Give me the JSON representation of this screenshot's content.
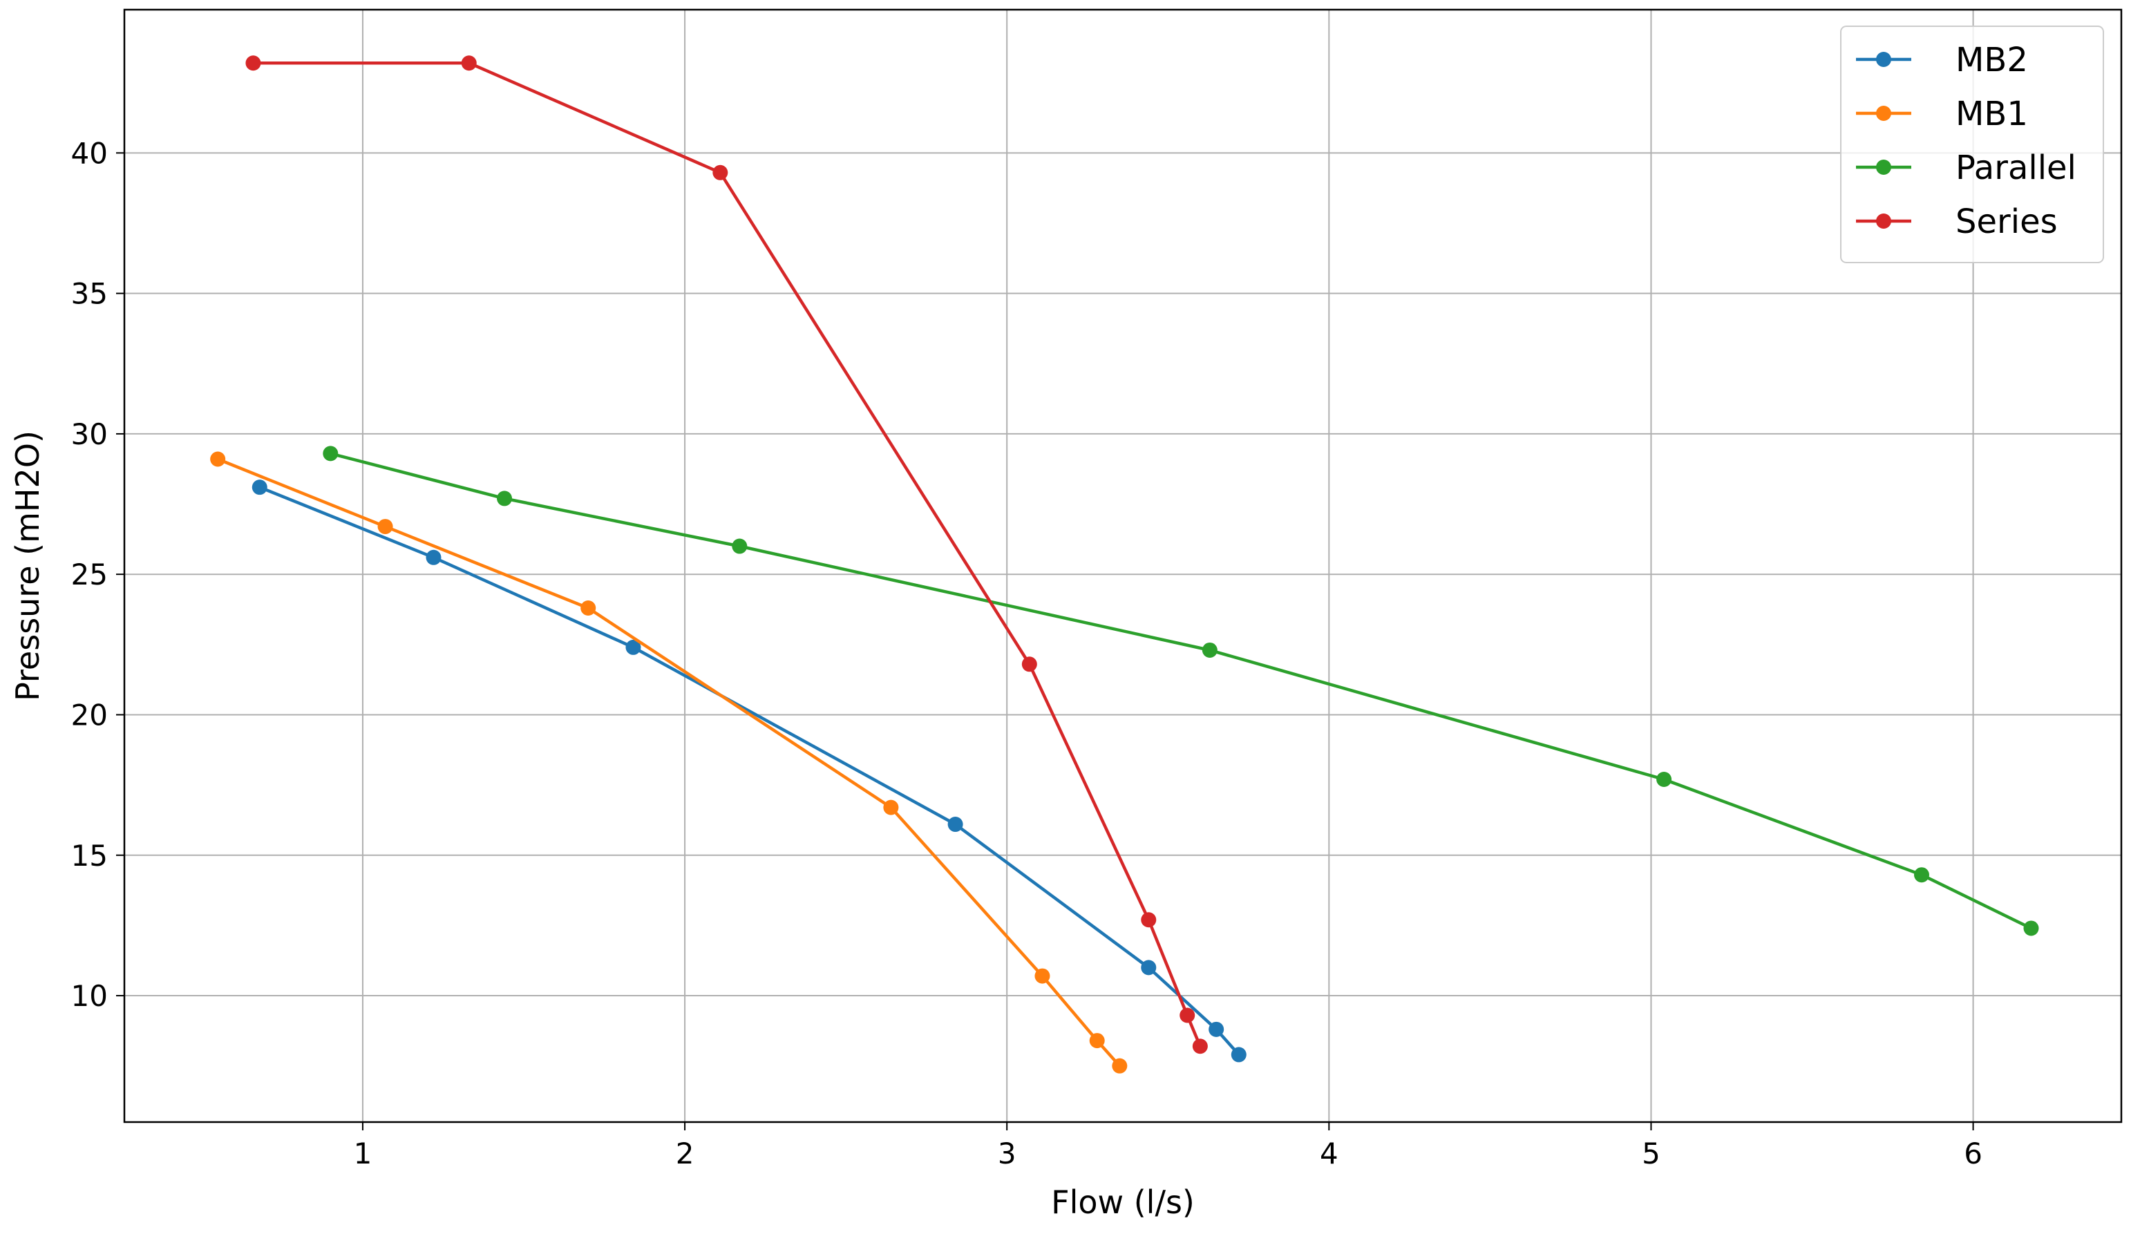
{
  "chart_data": {
    "type": "line",
    "title": "",
    "xlabel": "Flow (l/s)",
    "ylabel": "Pressure (mH2O)",
    "xlim": [
      0.26,
      6.46
    ],
    "ylim": [
      5.5,
      45.1
    ],
    "xticks": [
      1,
      2,
      3,
      4,
      5,
      6
    ],
    "yticks": [
      10,
      15,
      20,
      25,
      30,
      35,
      40
    ],
    "grid": true,
    "legend_position": "top-right",
    "series": [
      {
        "name": "MB2",
        "color": "#1f77b4",
        "x": [
          0.68,
          1.22,
          1.84,
          2.84,
          3.44,
          3.65,
          3.72
        ],
        "y": [
          28.1,
          25.6,
          22.4,
          16.1,
          11.0,
          8.8,
          7.9
        ]
      },
      {
        "name": "MB1",
        "color": "#ff7f0e",
        "x": [
          0.55,
          1.07,
          1.7,
          2.64,
          3.11,
          3.28,
          3.35
        ],
        "y": [
          29.1,
          26.7,
          23.8,
          16.7,
          10.7,
          8.4,
          7.5
        ]
      },
      {
        "name": "Parallel",
        "color": "#2ca02c",
        "x": [
          0.9,
          1.44,
          2.17,
          3.63,
          5.04,
          5.84,
          6.18
        ],
        "y": [
          29.3,
          27.7,
          26.0,
          22.3,
          17.7,
          14.3,
          12.4
        ]
      },
      {
        "name": "Series",
        "color": "#d62728",
        "x": [
          0.66,
          1.33,
          2.11,
          3.07,
          3.44,
          3.56,
          3.6
        ],
        "y": [
          43.2,
          43.2,
          39.3,
          21.8,
          12.7,
          9.3,
          8.2
        ]
      }
    ]
  }
}
